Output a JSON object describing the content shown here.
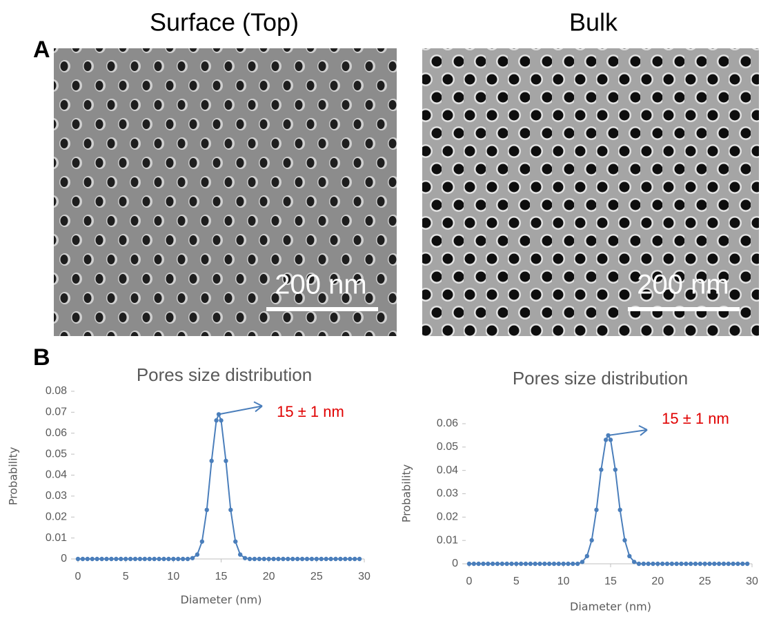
{
  "figure": {
    "panel_a_label": "A",
    "panel_b_label": "B",
    "images": [
      {
        "title": "Surface (Top)",
        "scale_bar": "200 nm"
      },
      {
        "title": "Bulk",
        "scale_bar": "200 nm"
      }
    ]
  },
  "chart_data": [
    {
      "type": "line",
      "title": "Pores size distribution",
      "x_label": "Diameter (nm)",
      "y_label": "Probability",
      "annotation": "15 ± 1 nm",
      "x": [
        0,
        0.5,
        1,
        1.5,
        2,
        2.5,
        3,
        3.5,
        4,
        4.5,
        5,
        5.5,
        6,
        6.5,
        7,
        7.5,
        8,
        8.5,
        9,
        9.5,
        10,
        10.5,
        11,
        11.5,
        12,
        12.5,
        13,
        13.5,
        14,
        14.5,
        14.75,
        15,
        15.5,
        16,
        16.5,
        17,
        17.5,
        18,
        18.5,
        19,
        19.5,
        20,
        20.5,
        21,
        21.5,
        22,
        22.5,
        23,
        23.5,
        24,
        24.5,
        25,
        25.5,
        26,
        26.5,
        27,
        27.5,
        28,
        28.5,
        29,
        29.5
      ],
      "series": [
        {
          "color": "#4a7ebb",
          "values": [
            0,
            0,
            0,
            0,
            0,
            0,
            0,
            0,
            0,
            0,
            0,
            0,
            0,
            0,
            0,
            0,
            0,
            0,
            0,
            0,
            0,
            0,
            0,
            0,
            0.0004,
            0.0021,
            0.0083,
            0.0234,
            0.0468,
            0.0661,
            0.069,
            0.0661,
            0.0468,
            0.0234,
            0.0083,
            0.0021,
            0.0004,
            0,
            0,
            0,
            0,
            0,
            0,
            0,
            0,
            0,
            0,
            0,
            0,
            0,
            0,
            0,
            0,
            0,
            0,
            0,
            0,
            0,
            0,
            0,
            0
          ]
        }
      ],
      "xlim": [
        0,
        30
      ],
      "xticks": [
        0,
        5,
        10,
        15,
        20,
        25,
        30
      ],
      "ylim": [
        0,
        0.08
      ],
      "yticks": [
        0,
        0.01,
        0.02,
        0.03,
        0.04,
        0.05,
        0.06,
        0.07,
        0.08
      ]
    },
    {
      "type": "line",
      "title": "Pores size distribution",
      "x_label": "Diameter (nm)",
      "y_label": "Probability",
      "annotation": "15 ± 1 nm",
      "x": [
        0,
        0.5,
        1,
        1.5,
        2,
        2.5,
        3,
        3.5,
        4,
        4.5,
        5,
        5.5,
        6,
        6.5,
        7,
        7.5,
        8,
        8.5,
        9,
        9.5,
        10,
        10.5,
        11,
        11.5,
        12,
        12.5,
        13,
        13.5,
        14,
        14.5,
        14.75,
        15,
        15.5,
        16,
        16.5,
        17,
        17.5,
        18,
        18.5,
        19,
        19.5,
        20,
        20.5,
        21,
        21.5,
        22,
        22.5,
        23,
        23.5,
        24,
        24.5,
        25,
        25.5,
        26,
        26.5,
        27,
        27.5,
        28,
        28.5,
        29,
        29.5
      ],
      "series": [
        {
          "color": "#4a7ebb",
          "values": [
            0,
            0,
            0,
            0,
            0,
            0,
            0,
            0,
            0,
            0,
            0,
            0,
            0,
            0,
            0,
            0,
            0,
            0,
            0,
            0,
            0,
            0,
            0,
            0,
            0.0008,
            0.0033,
            0.0101,
            0.0231,
            0.0403,
            0.0531,
            0.055,
            0.0531,
            0.0403,
            0.0231,
            0.0101,
            0.0033,
            0.0008,
            0,
            0,
            0,
            0,
            0,
            0,
            0,
            0,
            0,
            0,
            0,
            0,
            0,
            0,
            0,
            0,
            0,
            0,
            0,
            0,
            0,
            0,
            0,
            0
          ]
        }
      ],
      "xlim": [
        0,
        30
      ],
      "xticks": [
        0,
        5,
        10,
        15,
        20,
        25,
        30
      ],
      "ylim": [
        0,
        0.06
      ],
      "yticks": [
        0,
        0.01,
        0.02,
        0.03,
        0.04,
        0.05,
        0.06
      ]
    }
  ]
}
